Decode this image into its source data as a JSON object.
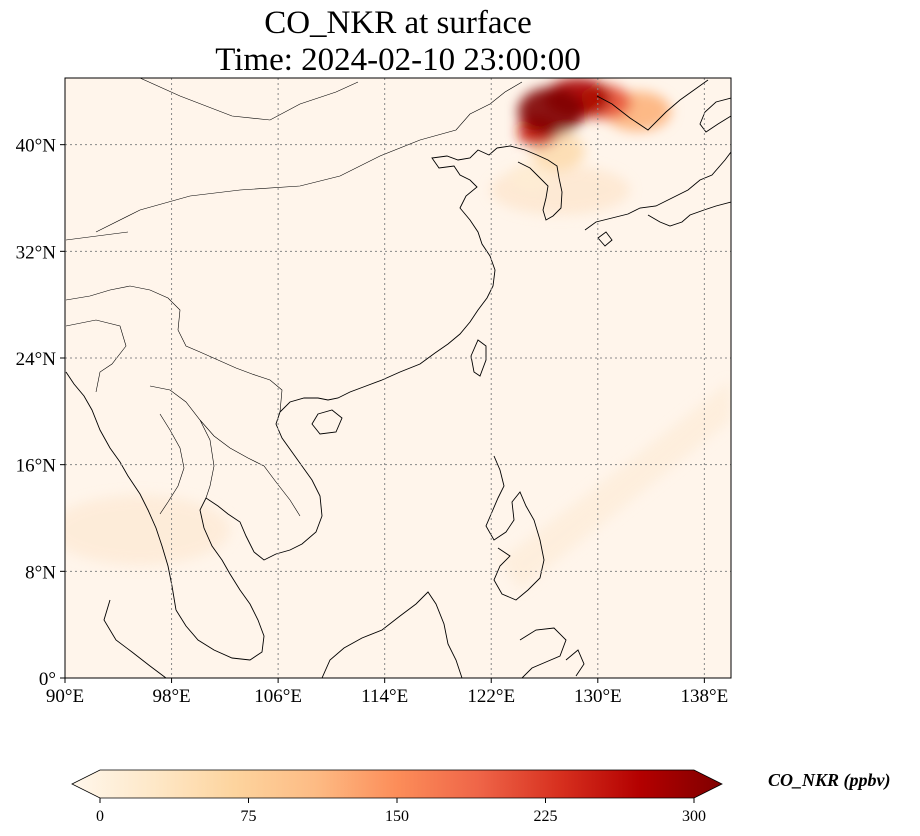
{
  "title": {
    "line1": "CO_NKR at surface",
    "line2": "Time: 2024-02-10 23:00:00"
  },
  "map": {
    "extent": {
      "lon_min": 90,
      "lon_max": 140,
      "lat_min": 0,
      "lat_max": 45
    },
    "lon_ticks": [
      {
        "value": 90,
        "label": "90°E"
      },
      {
        "value": 98,
        "label": "98°E"
      },
      {
        "value": 106,
        "label": "106°E"
      },
      {
        "value": 114,
        "label": "114°E"
      },
      {
        "value": 122,
        "label": "122°E"
      },
      {
        "value": 130,
        "label": "130°E"
      },
      {
        "value": 138,
        "label": "138°E"
      }
    ],
    "lat_ticks": [
      {
        "value": 0,
        "label": "0°"
      },
      {
        "value": 8,
        "label": "8°N"
      },
      {
        "value": 16,
        "label": "16°N"
      },
      {
        "value": 24,
        "label": "24°N"
      },
      {
        "value": 32,
        "label": "32°N"
      },
      {
        "value": 40,
        "label": "40°N"
      }
    ],
    "gridlines": true,
    "background_color": "#fff5eb",
    "coastline_color": "#000000"
  },
  "colorbar": {
    "label": "CO_NKR (ppbv)",
    "min": 0,
    "max": 300,
    "ticks": [
      {
        "value": 0,
        "label": "0"
      },
      {
        "value": 75,
        "label": "75"
      },
      {
        "value": 150,
        "label": "150"
      },
      {
        "value": 225,
        "label": "225"
      },
      {
        "value": 300,
        "label": "300"
      }
    ],
    "extend": "both",
    "colormap": "OrRd",
    "stops": [
      "#fff7ec",
      "#fee8c8",
      "#fdd49e",
      "#fdbb84",
      "#fc8d59",
      "#ef6548",
      "#d7301f",
      "#b30000",
      "#7f0000"
    ]
  },
  "plumes": [
    {
      "lon": 126.5,
      "lat": 42.5,
      "rx": 2.5,
      "ry": 1.8,
      "value": 300
    },
    {
      "lon": 128.5,
      "lat": 43.5,
      "rx": 2.5,
      "ry": 1.5,
      "value": 270
    },
    {
      "lon": 125.5,
      "lat": 41.0,
      "rx": 1.5,
      "ry": 1.2,
      "value": 240
    },
    {
      "lon": 130.5,
      "lat": 43.2,
      "rx": 2.0,
      "ry": 1.3,
      "value": 200
    },
    {
      "lon": 133.0,
      "lat": 42.5,
      "rx": 2.5,
      "ry": 1.5,
      "value": 120
    },
    {
      "lon": 127.0,
      "lat": 39.5,
      "rx": 2.0,
      "ry": 1.5,
      "value": 60
    },
    {
      "lon": 125.0,
      "lat": 37.5,
      "rx": 1.5,
      "ry": 1.0,
      "value": 25
    }
  ]
}
